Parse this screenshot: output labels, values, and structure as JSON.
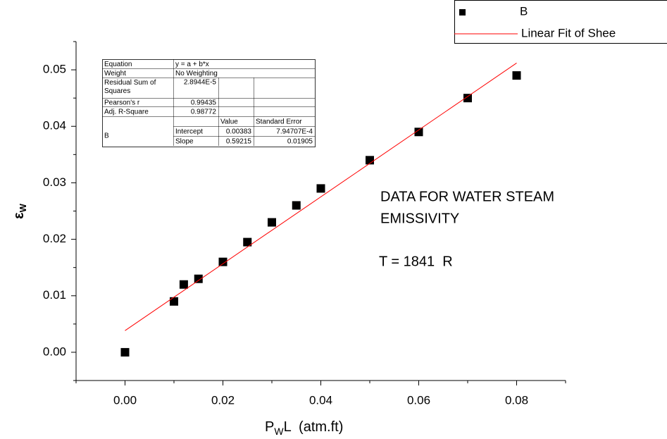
{
  "chart_data": {
    "type": "scatter",
    "x_label": [
      "P",
      "W",
      "L  (atm.ft)"
    ],
    "y_label": [
      "ε",
      "W"
    ],
    "xlim": [
      -0.01,
      0.09
    ],
    "ylim": [
      -0.005,
      0.055
    ],
    "xticks": [
      {
        "value": 0,
        "label": "0.00"
      },
      {
        "value": 0.02,
        "label": "0.02"
      },
      {
        "value": 0.04,
        "label": "0.04"
      },
      {
        "value": 0.06,
        "label": "0.06"
      },
      {
        "value": 0.08,
        "label": "0.08"
      }
    ],
    "xminorticks": [
      -0.01,
      0.01,
      0.03,
      0.05,
      0.07,
      0.09
    ],
    "yticks": [
      {
        "value": 0,
        "label": "0.00"
      },
      {
        "value": 0.01,
        "label": "0.01"
      },
      {
        "value": 0.02,
        "label": "0.02"
      },
      {
        "value": 0.03,
        "label": "0.03"
      },
      {
        "value": 0.04,
        "label": "0.04"
      },
      {
        "value": 0.05,
        "label": "0.05"
      }
    ],
    "yminorticks": [
      -0.005,
      0.005,
      0.015,
      0.025,
      0.035,
      0.045,
      0.055
    ],
    "series": [
      {
        "name": "B",
        "color": "#000000",
        "marker": "square",
        "x": [
          0,
          0.01,
          0.012,
          0.015,
          0.02,
          0.025,
          0.03,
          0.035,
          0.04,
          0.05,
          0.06,
          0.07,
          0.08
        ],
        "values": [
          0,
          0.009,
          0.012,
          0.013,
          0.016,
          0.0195,
          0.023,
          0.026,
          0.029,
          0.034,
          0.039,
          0.045,
          0.049
        ]
      },
      {
        "name": "Linear Fit of Shee",
        "color": "#ff0000",
        "marker": "line",
        "x": [
          0,
          0.08
        ],
        "values": [
          0.00383,
          0.0512
        ]
      }
    ],
    "annotations": [
      "DATA FOR WATER STEAM",
      "EMISSIVITY",
      "T = 1841  R"
    ],
    "fit_table": {
      "rows": [
        [
          "Equation",
          "y = a + b*x",
          null,
          null
        ],
        [
          "Weight",
          "No Weighting",
          null,
          null
        ],
        [
          "Residual Sum of Squares",
          "2.8944E-5",
          null,
          null
        ],
        [
          "Pearson's r",
          "0.99435",
          null,
          null
        ],
        [
          "Adj. R-Square",
          "0.98772",
          null,
          null
        ],
        [
          null,
          null,
          "Value",
          "Standard Error"
        ],
        [
          "B",
          "Intercept",
          "0.00383",
          "7.94707E-4"
        ],
        [
          null,
          "Slope",
          "0.59215",
          "0.01905"
        ]
      ]
    }
  }
}
